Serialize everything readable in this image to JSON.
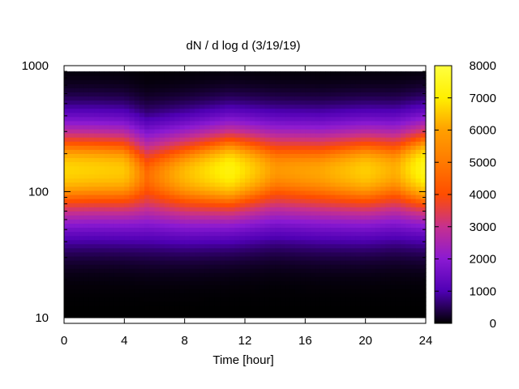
{
  "chart_data": {
    "type": "heatmap",
    "title": "dN / d log d (3/19/19)",
    "xlabel": "Time [hour]",
    "ylabel": "",
    "x_range": [
      0,
      24
    ],
    "x_ticks": [
      0,
      4,
      8,
      12,
      16,
      20,
      24
    ],
    "y_scale": "log",
    "y_range": [
      9,
      1000
    ],
    "y_ticks": [
      10,
      100,
      1000
    ],
    "colorbar": {
      "range": [
        0,
        8000
      ],
      "ticks": [
        0,
        1000,
        2000,
        3000,
        4000,
        5000,
        6000,
        7000,
        8000
      ],
      "palette": [
        "#000000",
        "#4f00b4",
        "#8b1ad2",
        "#c6308f",
        "#ff4d00",
        "#ff9f00",
        "#ffef00",
        "#ffff40"
      ]
    },
    "peak_diameter_by_hour": {
      "hours": [
        0,
        2,
        4,
        5.5,
        8,
        11,
        14,
        17,
        20,
        22,
        24
      ],
      "diameter": [
        150,
        150,
        148,
        135,
        140,
        150,
        150,
        145,
        148,
        150,
        155
      ]
    },
    "peak_concentration_by_hour": {
      "hours": [
        0,
        2,
        4,
        5.5,
        8,
        11,
        14,
        17,
        20,
        22,
        24
      ],
      "value": [
        6500,
        6400,
        6300,
        5000,
        6100,
        7100,
        5600,
        5800,
        6400,
        5900,
        7400
      ]
    }
  }
}
